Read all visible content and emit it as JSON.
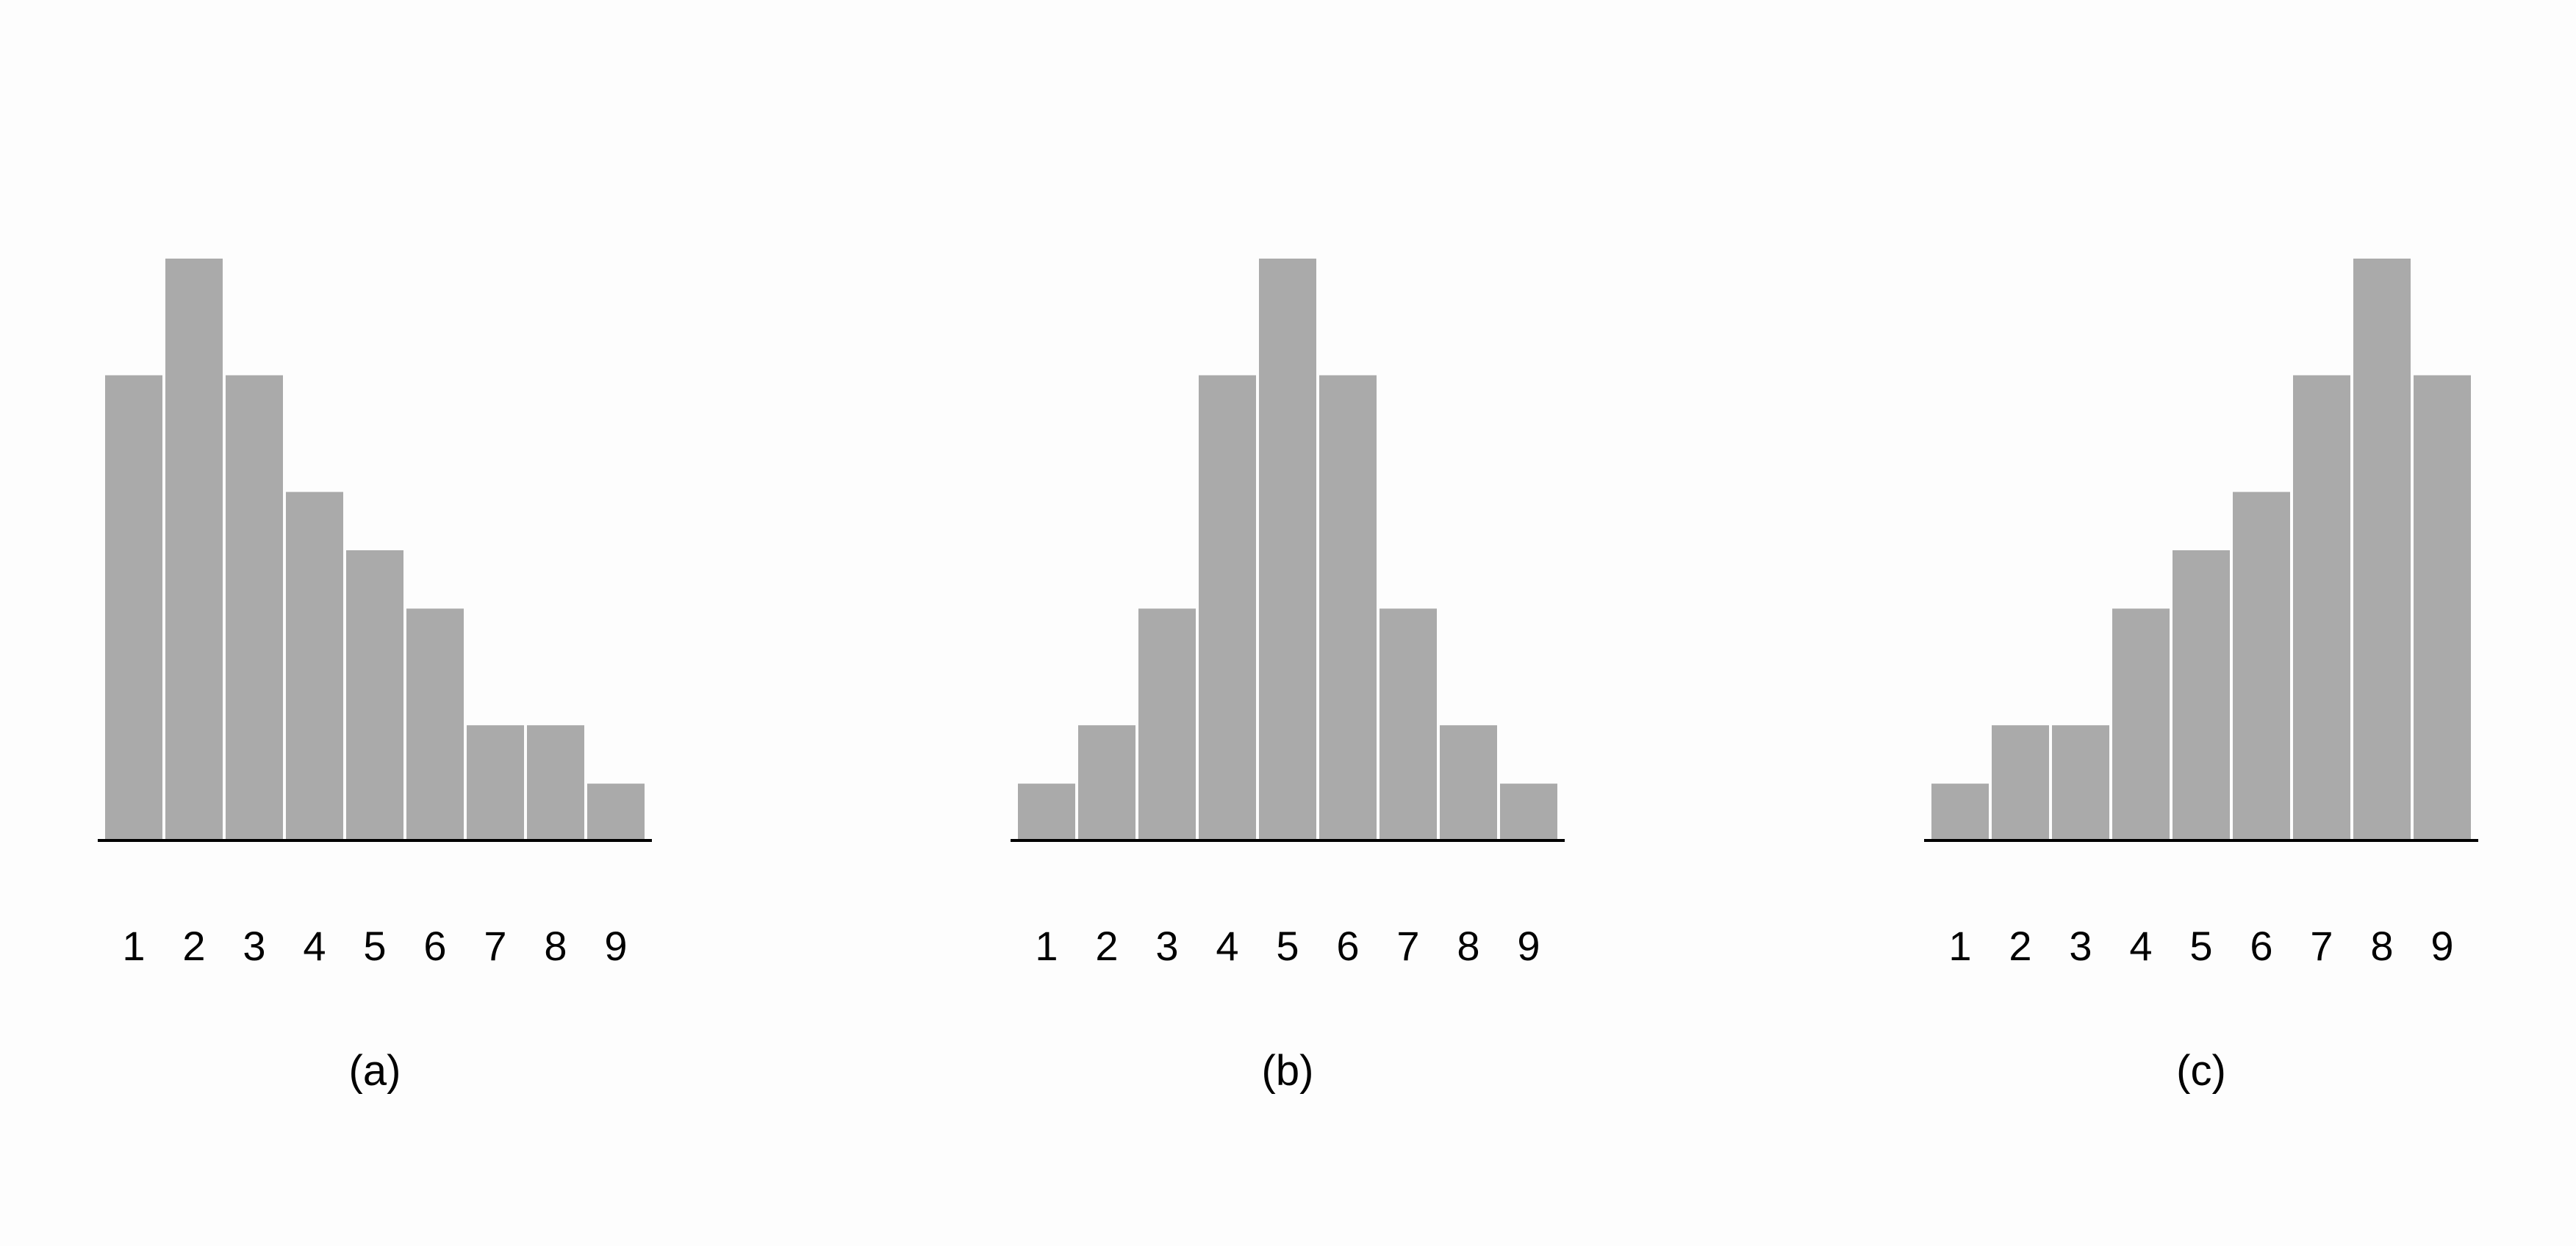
{
  "chart_data": [
    {
      "type": "bar",
      "categories": [
        "1",
        "2",
        "3",
        "4",
        "5",
        "6",
        "7",
        "8",
        "9"
      ],
      "values": [
        8,
        10,
        8,
        6,
        5,
        4,
        2,
        2,
        1
      ],
      "caption": "(a)",
      "ylim": [
        0,
        10
      ],
      "grid": false,
      "legend": "none"
    },
    {
      "type": "bar",
      "categories": [
        "1",
        "2",
        "3",
        "4",
        "5",
        "6",
        "7",
        "8",
        "9"
      ],
      "values": [
        1,
        2,
        4,
        8,
        10,
        8,
        4,
        2,
        1
      ],
      "caption": "(b)",
      "ylim": [
        0,
        10
      ],
      "grid": false,
      "legend": "none"
    },
    {
      "type": "bar",
      "categories": [
        "1",
        "2",
        "3",
        "4",
        "5",
        "6",
        "7",
        "8",
        "9"
      ],
      "values": [
        1,
        2,
        2,
        4,
        5,
        6,
        8,
        10,
        8
      ],
      "caption": "(c)",
      "ylim": [
        0,
        10
      ],
      "grid": false,
      "legend": "none"
    }
  ],
  "colors": {
    "bar": "#aaaaaa",
    "axis": "#000000",
    "background": "#fdfdfd"
  }
}
